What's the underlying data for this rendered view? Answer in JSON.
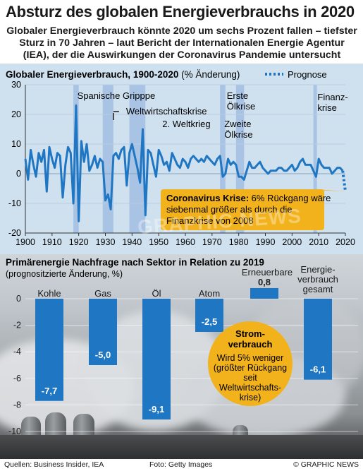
{
  "title": "Absturz des globalen Energieverbrauchs in 2020",
  "subtitle": "Globaler Energieverbrauch könnte 2020 um sechs Prozent fallen – tiefster Sturz in 70 Jahren – laut Bericht der Internationalen Energie Agentur (IEA), der die Auswirkungen der Coronavirus Pandemie untersucht",
  "colors": {
    "series": "#1f77c4",
    "shade": "#a9c3e4",
    "panel": "#cfe0ef",
    "callout": "#f2b21b",
    "bar": "#1f77c4"
  },
  "chart_data": [
    {
      "type": "line",
      "title": "Globaler Energieverbrauch, 1900-2020",
      "title_unit": "(% Änderung)",
      "legend": {
        "label": "Prognose",
        "position": "top-right"
      },
      "ylim": [
        -20,
        30
      ],
      "yticks": [
        "30",
        "20",
        "10",
        "0",
        "-10",
        "-20"
      ],
      "xlim": [
        1900,
        2020
      ],
      "xticks": [
        "1900",
        "1910",
        "1920",
        "1930",
        "1940",
        "1950",
        "1960",
        "1970",
        "1980",
        "1990",
        "2000",
        "2010",
        "2020"
      ],
      "shaded_periods": [
        {
          "start": 1918,
          "end": 1920,
          "label": "Spanische Gripppe"
        },
        {
          "start": 1929,
          "end": 1933,
          "label": "Weltwirtschaftskrise"
        },
        {
          "start": 1939,
          "end": 1945,
          "label": "2. Weltkrieg"
        },
        {
          "start": 1973,
          "end": 1975,
          "label": "Erste Ölkrise"
        },
        {
          "start": 1979,
          "end": 1982,
          "label": "Zweite Ölkrise"
        },
        {
          "start": 2008,
          "end": 2009,
          "label": "Finanz- krise"
        }
      ],
      "series": [
        {
          "x": [
            1900,
            1901,
            1902,
            1903,
            1904,
            1905,
            1906,
            1907,
            1908,
            1909,
            1910,
            1911,
            1912,
            1913,
            1914,
            1915,
            1916,
            1917,
            1918,
            1919,
            1920,
            1921,
            1922,
            1923,
            1924,
            1925,
            1926,
            1927,
            1928,
            1929,
            1930,
            1931,
            1932,
            1933,
            1934,
            1935,
            1936,
            1937,
            1938,
            1939,
            1940,
            1941,
            1942,
            1943,
            1944,
            1945,
            1946,
            1947,
            1948,
            1949,
            1950,
            1951,
            1952,
            1953,
            1954,
            1955,
            1956,
            1957,
            1958,
            1959,
            1960,
            1961,
            1962,
            1963,
            1964,
            1965,
            1966,
            1967,
            1968,
            1969,
            1970,
            1971,
            1972,
            1973,
            1974,
            1975,
            1976,
            1977,
            1978,
            1979,
            1980,
            1981,
            1982,
            1983,
            1984,
            1985,
            1986,
            1987,
            1988,
            1989,
            1990,
            1991,
            1992,
            1993,
            1994,
            1995,
            1996,
            1997,
            1998,
            1999,
            2000,
            2001,
            2002,
            2003,
            2004,
            2005,
            2006,
            2007,
            2008,
            2009,
            2010,
            2011,
            2012,
            2013,
            2014,
            2015,
            2016,
            2017,
            2018,
            2019
          ],
          "values": [
            5,
            -2,
            8,
            3,
            -1,
            7,
            4,
            8,
            -6,
            9,
            5,
            2,
            7,
            6,
            -8,
            3,
            9,
            7,
            -10,
            23,
            -16,
            11,
            4,
            10,
            1,
            3,
            6,
            2,
            5,
            4,
            -9,
            -7,
            -12,
            6,
            7,
            5,
            8,
            9,
            -4,
            7,
            10,
            6,
            2,
            -3,
            15,
            -14,
            8,
            7,
            3,
            -1,
            8,
            6,
            3,
            4,
            1,
            7,
            5,
            3,
            2,
            5,
            4,
            2,
            5,
            6,
            5,
            4,
            5,
            4,
            6,
            5,
            4,
            3,
            5,
            6,
            -1,
            0,
            5,
            3,
            4,
            3,
            -1,
            -1,
            -2,
            1,
            4,
            2,
            2,
            3,
            4,
            2,
            1,
            0,
            1,
            1,
            1,
            2,
            2,
            1,
            1,
            2,
            3,
            1,
            2,
            4,
            5,
            3,
            3,
            3,
            1,
            -1,
            5,
            3,
            2,
            2,
            2,
            0,
            1,
            2,
            2,
            1
          ]
        },
        {
          "name": "Prognose",
          "x": [
            2019,
            2020
          ],
          "values": [
            1,
            -6
          ]
        }
      ],
      "annotation": {
        "bold": "Coronavirus Krise:",
        "text": " 6% Rückgang wäre siebenmal größer als durch die Finanzkrise von 2008"
      }
    },
    {
      "type": "bar",
      "title": "Primärenergie Nachfrage nach Sektor in Relation zu 2019",
      "subtitle": "(prognositzierte Änderung, %)",
      "ylim": [
        -10,
        0.8
      ],
      "yticks": [
        "0",
        "-2",
        "-4",
        "-6",
        "-8",
        "-10"
      ],
      "categories": [
        "Kohle",
        "Gas",
        "Öl",
        "Atom",
        "Erneuerbare",
        "Energie- verbrauch gesamt"
      ],
      "values": [
        -7.7,
        -5.0,
        -9.1,
        -2.5,
        0.8,
        -6.1
      ],
      "value_labels": [
        "-7,7",
        "-5,0",
        "-9,1",
        "-2,5",
        "0,8",
        "-6,1"
      ],
      "callout": {
        "title": "Strom- verbrauch",
        "text": "Wird 5% weniger (größter Rückgang seit Weltwirtschafts- krise)"
      }
    }
  ],
  "watermark": "GRAPHIC NEWS",
  "footer": {
    "sources": "Quellen: Business Insider, IEA",
    "photo": "Foto: Getty Images",
    "credit": "© GRAPHIC NEWS"
  }
}
